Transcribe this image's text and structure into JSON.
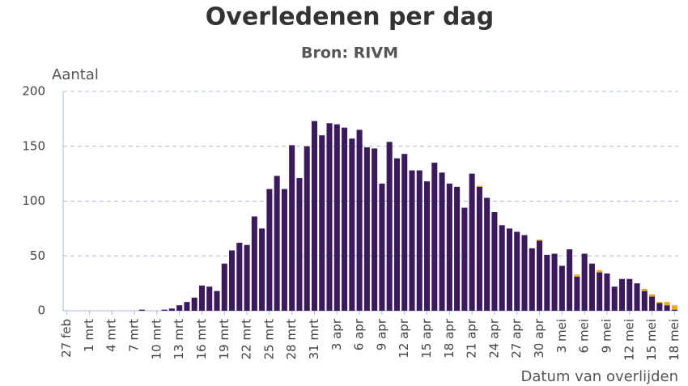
{
  "chart_data": {
    "type": "stacked_bar",
    "title": "Overledenen per dag",
    "subtitle": "Bron: RIVM",
    "y_label": "Aantal",
    "x_label": "Datum van overlijden",
    "categories": [
      "27 feb",
      null,
      null,
      "1 mrt",
      null,
      null,
      "4 mrt",
      null,
      null,
      "7 mrt",
      null,
      null,
      "10 mrt",
      null,
      null,
      "13 mrt",
      null,
      null,
      "16 mrt",
      null,
      null,
      "19 mrt",
      null,
      null,
      "22 mrt",
      null,
      null,
      "25 mrt",
      null,
      null,
      "28 mrt",
      null,
      null,
      "31 mrt",
      null,
      null,
      "3 apr",
      null,
      null,
      "6 apr",
      null,
      null,
      "9 apr",
      null,
      null,
      "12 apr",
      null,
      null,
      "15 apr",
      null,
      null,
      "18 apr",
      null,
      null,
      "21 apr",
      null,
      null,
      "24 apr",
      null,
      null,
      "27 apr",
      null,
      null,
      "30 apr",
      null,
      null,
      "3 mei",
      null,
      null,
      "6 mei",
      null,
      null,
      "9 mei",
      null,
      null,
      "12 mei",
      null,
      null,
      "15 mei",
      null,
      null,
      "18 mei"
    ],
    "series": [
      {
        "color": "#3b1a5c",
        "values": [
          0,
          0,
          0,
          0,
          0,
          0,
          0,
          0,
          0,
          0,
          1,
          0,
          0,
          1,
          2,
          5,
          8,
          12,
          23,
          22,
          18,
          43,
          55,
          62,
          60,
          86,
          75,
          111,
          123,
          111,
          151,
          121,
          150,
          173,
          160,
          171,
          170,
          167,
          157,
          165,
          149,
          148,
          116,
          154,
          139,
          143,
          128,
          128,
          118,
          135,
          126,
          116,
          113,
          94,
          125,
          113,
          103,
          90,
          78,
          75,
          72,
          69,
          57,
          64,
          51,
          52,
          41,
          56,
          31,
          52,
          43,
          35,
          34,
          22,
          29,
          29,
          25,
          18,
          13,
          7,
          5,
          1
        ]
      },
      {
        "color": "#f0a81c",
        "values": [
          0,
          0,
          0,
          0,
          0,
          0,
          0,
          0,
          0,
          0,
          0,
          0,
          0,
          0,
          0,
          0,
          0,
          0,
          0,
          0,
          0,
          0,
          0,
          0,
          0,
          0,
          0,
          0,
          0,
          0,
          0,
          0,
          0,
          0,
          0,
          0,
          0,
          0,
          0,
          0,
          0,
          0,
          0,
          0,
          0,
          0,
          0,
          0,
          0,
          0,
          0,
          0,
          0,
          0,
          0,
          1,
          0,
          0,
          0,
          0,
          0,
          0,
          0,
          1,
          0,
          0,
          0,
          0,
          2,
          0,
          0,
          2,
          0,
          0,
          0,
          0,
          0,
          2,
          2,
          1,
          3,
          4
        ]
      }
    ],
    "ylim": [
      0,
      200
    ],
    "yticks": [
      0,
      50,
      100,
      150,
      200
    ],
    "grid": true
  }
}
